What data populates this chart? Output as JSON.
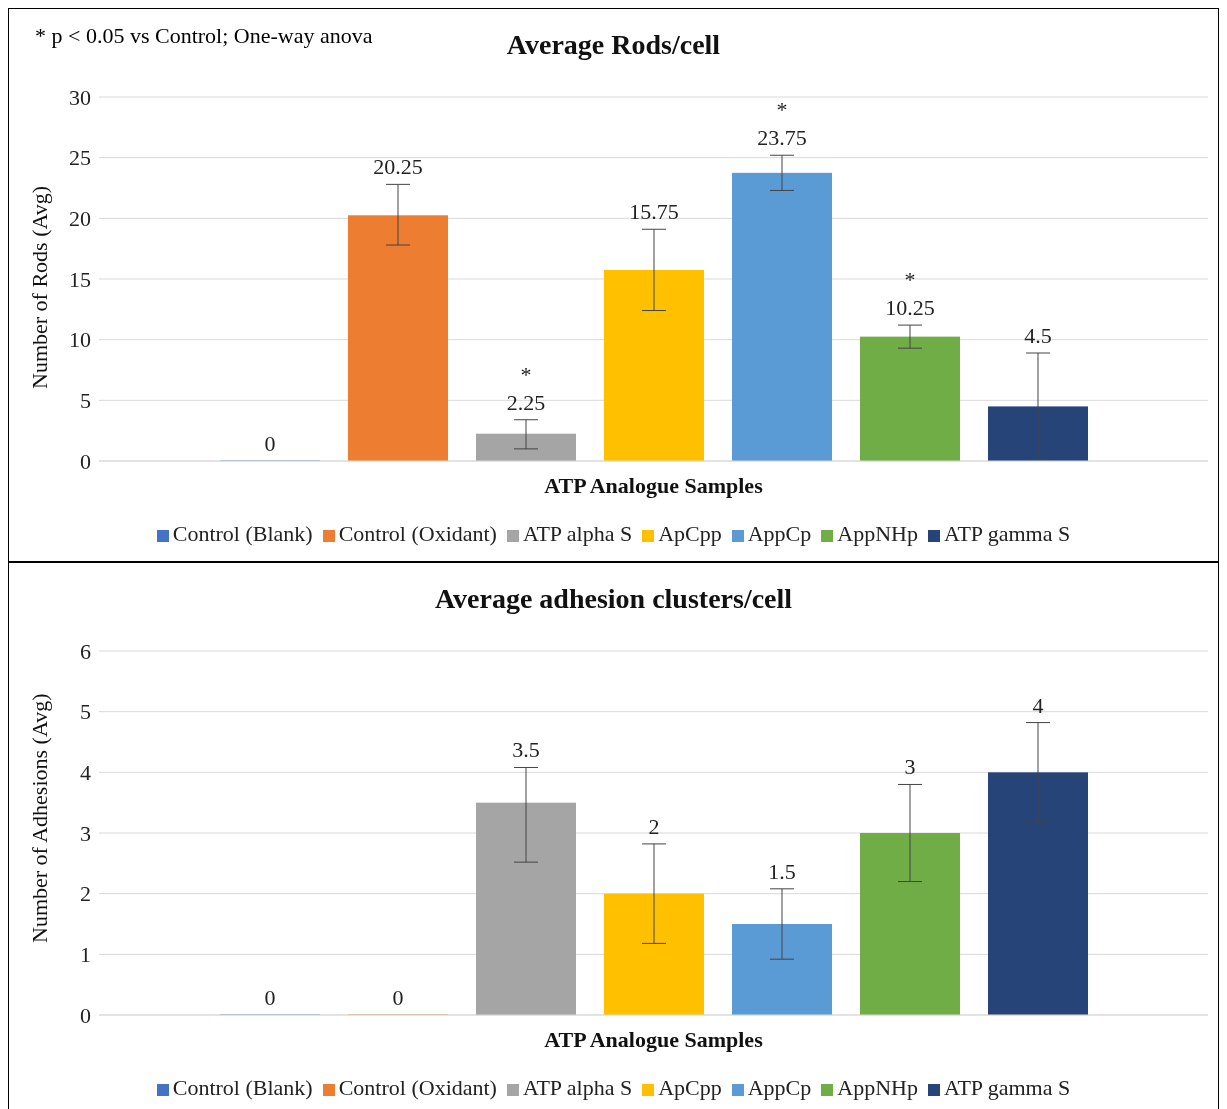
{
  "chart_data": [
    {
      "type": "bar",
      "title": "Average Rods/cell",
      "xlabel": "ATP Analogue Samples",
      "ylabel": "Number of Rods (Avg)",
      "categories": [
        null
      ],
      "ylim": [
        0,
        30
      ],
      "yticks": [
        0,
        5,
        10,
        15,
        20,
        25,
        30
      ],
      "grid": "y",
      "legend": "bottom",
      "data_labels": true,
      "annotations": [
        "* p < 0.05 vs Control; One-way anova",
        {
          "text": "*",
          "y": 2.25
        },
        {
          "text": "*",
          "y": 23.75
        },
        {
          "text": "*",
          "y": 10.25
        }
      ],
      "series": [
        {
          "name": "Control (Blank)",
          "color": "#4472c4",
          "values": [
            0
          ],
          "errors": [
            null
          ]
        },
        {
          "name": "Control (Oxidant)",
          "color": "#ed7d31",
          "values": [
            20.25
          ],
          "errors": [
            [
              17.8,
              22.8
            ]
          ]
        },
        {
          "name": "ATP alpha S",
          "color": "#a5a5a5",
          "values": [
            2.25
          ],
          "errors": [
            [
              1.0,
              3.4
            ]
          ]
        },
        {
          "name": "ApCpp",
          "color": "#ffc000",
          "values": [
            15.75
          ],
          "errors": [
            [
              12.4,
              19.1
            ]
          ]
        },
        {
          "name": "AppCp",
          "color": "#5b9bd5",
          "values": [
            23.75
          ],
          "errors": [
            [
              22.3,
              25.2
            ]
          ]
        },
        {
          "name": "AppNHp",
          "color": "#70ad47",
          "values": [
            10.25
          ],
          "errors": [
            [
              9.3,
              11.2
            ]
          ]
        },
        {
          "name": "ATP gamma S",
          "color": "#264478",
          "values": [
            4.5
          ],
          "errors": [
            [
              0.1,
              8.9
            ]
          ]
        }
      ]
    },
    {
      "type": "bar",
      "title": "Average adhesion clusters/cell",
      "xlabel": "ATP Analogue Samples",
      "ylabel": "Number of Adhesions (Avg)",
      "categories": [
        null
      ],
      "ylim": [
        0,
        6
      ],
      "yticks": [
        0,
        1,
        2,
        3,
        4,
        5,
        6
      ],
      "grid": "y",
      "legend": "bottom",
      "data_labels": true,
      "series": [
        {
          "name": "Control (Blank)",
          "color": "#4472c4",
          "values": [
            0
          ],
          "errors": [
            null
          ]
        },
        {
          "name": "Control (Oxidant)",
          "color": "#ed7d31",
          "values": [
            0
          ],
          "errors": [
            null
          ]
        },
        {
          "name": "ATP alpha S",
          "color": "#a5a5a5",
          "values": [
            3.5
          ],
          "errors": [
            [
              2.52,
              4.08
            ]
          ]
        },
        {
          "name": "ApCpp",
          "color": "#ffc000",
          "values": [
            2
          ],
          "errors": [
            [
              1.18,
              2.82
            ]
          ]
        },
        {
          "name": "AppCp",
          "color": "#5b9bd5",
          "values": [
            1.5
          ],
          "errors": [
            [
              0.92,
              2.08
            ]
          ]
        },
        {
          "name": "AppNHp",
          "color": "#70ad47",
          "values": [
            3
          ],
          "errors": [
            [
              2.2,
              3.8
            ]
          ]
        },
        {
          "name": "ATP gamma S",
          "color": "#264478",
          "values": [
            4
          ],
          "errors": [
            [
              3.18,
              4.82
            ]
          ]
        }
      ]
    }
  ]
}
